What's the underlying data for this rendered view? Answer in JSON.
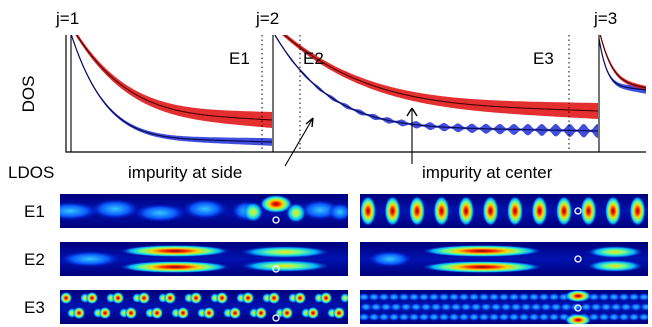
{
  "figure": {
    "dos_axis_label": "DOS",
    "band_labels": [
      "j=1",
      "j=2",
      "j=3"
    ],
    "energy_markers": [
      "E1",
      "E2",
      "E3"
    ],
    "ldos_label": "LDOS",
    "row_labels": [
      "E1",
      "E2",
      "E3"
    ],
    "annotations": {
      "side": "impurity at side",
      "center": "impurity at center"
    },
    "colors": {
      "side_curve": "#1f2fd8",
      "center_curve": "#e01818",
      "ldos_background": "#00008c"
    }
  }
}
